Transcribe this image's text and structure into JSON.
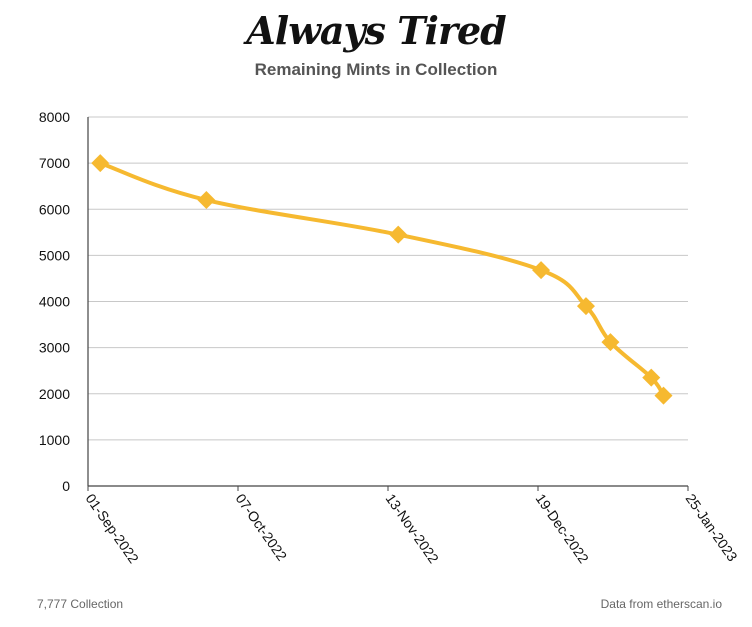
{
  "chart_data": {
    "type": "line",
    "title": "Always Tired",
    "subtitle": "Remaining Mints in Collection",
    "x_tick_labels": [
      "01-Sep-2022",
      "07-Oct-2022",
      "13-Nov-2022",
      "19-Dec-2022",
      "25-Jan-2023"
    ],
    "x_range": [
      "2022-08-31",
      "2023-01-25"
    ],
    "ylim": [
      0,
      8000
    ],
    "y_ticks": [
      0,
      1000,
      2000,
      3000,
      4000,
      5000,
      6000,
      7000,
      8000
    ],
    "grid": true,
    "series": [
      {
        "color": "#f6b930",
        "marker": "diamond",
        "points": [
          {
            "x": "2022-09-03",
            "y": 7000
          },
          {
            "x": "2022-09-29",
            "y": 6200
          },
          {
            "x": "2022-11-15",
            "y": 5450
          },
          {
            "x": "2022-12-20",
            "y": 4680
          },
          {
            "x": "2022-12-31",
            "y": 3900
          },
          {
            "x": "2023-01-06",
            "y": 3120
          },
          {
            "x": "2023-01-16",
            "y": 2350
          },
          {
            "x": "2023-01-19",
            "y": 1960
          }
        ]
      }
    ]
  },
  "footer": {
    "left": "7,777 Collection",
    "right": "Data from etherscan.io"
  }
}
